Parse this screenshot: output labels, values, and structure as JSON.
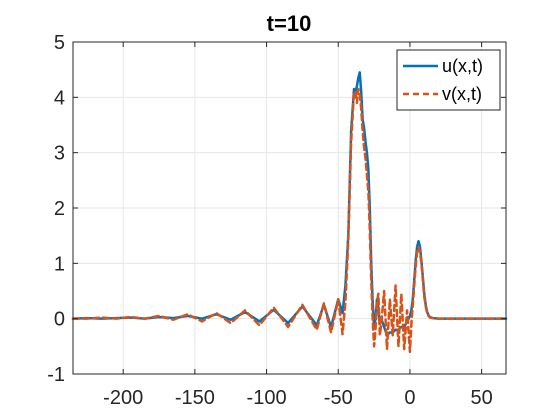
{
  "chart_data": {
    "type": "line",
    "title": "t=10",
    "xlabel": "",
    "ylabel": "",
    "xlim": [
      -235,
      67
    ],
    "ylim": [
      -1,
      5
    ],
    "xticks": [
      -200,
      -150,
      -100,
      -50,
      0,
      50
    ],
    "yticks": [
      -1,
      0,
      1,
      2,
      3,
      4,
      5
    ],
    "grid": true,
    "legend_position": "top-right",
    "series": [
      {
        "name": "u(x,t)",
        "color": "#0072BD",
        "style": "solid",
        "x": [
          -235,
          -225,
          -215,
          -205,
          -195,
          -185,
          -175,
          -165,
          -155,
          -145,
          -135,
          -125,
          -115,
          -105,
          -95,
          -85,
          -75,
          -65,
          -60,
          -55,
          -50,
          -47,
          -45,
          -43,
          -41,
          -39,
          -38,
          -37,
          -36,
          -35,
          -34,
          -33,
          -32,
          -31,
          -30,
          -29,
          -28,
          -27,
          -26,
          -25,
          -24,
          -23,
          -22,
          -21,
          -20,
          -18,
          -16,
          -14,
          -12,
          -10,
          -8,
          -6,
          -4,
          -2,
          0,
          1,
          2,
          3,
          4,
          5,
          6,
          7,
          8,
          9,
          10,
          11,
          12,
          13,
          14,
          16,
          20,
          30,
          40,
          50,
          60,
          67
        ],
        "y": [
          0.0,
          0.01,
          0.0,
          0.01,
          0.02,
          0.0,
          0.03,
          0.01,
          0.05,
          0.0,
          0.08,
          -0.02,
          0.12,
          -0.05,
          0.16,
          -0.08,
          0.22,
          -0.12,
          0.25,
          -0.15,
          0.35,
          0.1,
          0.6,
          1.5,
          3.4,
          4.15,
          4.1,
          4.2,
          4.35,
          4.45,
          4.1,
          3.6,
          3.45,
          3.2,
          3.0,
          2.7,
          2.0,
          1.0,
          0.3,
          -0.15,
          0.0,
          0.35,
          0.2,
          -0.1,
          0.0,
          -0.15,
          -0.3,
          -0.25,
          -0.25,
          -0.2,
          -0.2,
          -0.15,
          -0.15,
          -0.05,
          0.05,
          0.15,
          0.35,
          0.7,
          1.05,
          1.3,
          1.4,
          1.3,
          1.05,
          0.75,
          0.45,
          0.25,
          0.12,
          0.06,
          0.03,
          0.01,
          0.0,
          0.0,
          0.0,
          0.0,
          0.0,
          0.0
        ]
      },
      {
        "name": "v(x,t)",
        "color": "#D95319",
        "style": "dashed",
        "x": [
          -235,
          -225,
          -215,
          -205,
          -195,
          -185,
          -175,
          -165,
          -155,
          -145,
          -135,
          -125,
          -115,
          -105,
          -95,
          -85,
          -75,
          -65,
          -60,
          -55,
          -50,
          -47,
          -45,
          -43,
          -41,
          -39,
          -38,
          -37,
          -36,
          -35,
          -34,
          -33,
          -32,
          -31,
          -30,
          -29,
          -28,
          -27,
          -26,
          -25,
          -24,
          -23,
          -22,
          -21,
          -20,
          -18,
          -16,
          -14,
          -12,
          -10,
          -8,
          -6,
          -4,
          -2,
          0,
          1,
          2,
          3,
          4,
          5,
          6,
          7,
          8,
          9,
          10,
          11,
          12,
          13,
          14,
          16,
          20,
          30,
          40,
          50,
          60,
          67
        ],
        "y": [
          0.0,
          0.0,
          0.02,
          0.0,
          0.03,
          0.0,
          0.05,
          -0.02,
          0.08,
          -0.05,
          0.1,
          -0.08,
          0.15,
          -0.12,
          0.2,
          -0.15,
          0.25,
          -0.2,
          0.28,
          -0.25,
          0.35,
          -0.28,
          0.3,
          1.4,
          3.2,
          4.1,
          4.1,
          3.9,
          4.15,
          4.05,
          3.8,
          3.4,
          3.1,
          2.9,
          2.6,
          2.3,
          1.6,
          0.7,
          0.0,
          -0.5,
          -0.2,
          0.3,
          0.45,
          -0.3,
          -0.1,
          0.5,
          -0.55,
          0.35,
          -0.3,
          0.6,
          -0.5,
          0.45,
          -0.55,
          0.15,
          -0.6,
          -0.1,
          0.25,
          0.6,
          0.95,
          1.2,
          1.3,
          1.2,
          1.0,
          0.7,
          0.4,
          0.22,
          0.1,
          0.05,
          0.02,
          0.01,
          0.0,
          0.0,
          0.0,
          0.0,
          0.0,
          0.0
        ]
      }
    ]
  }
}
